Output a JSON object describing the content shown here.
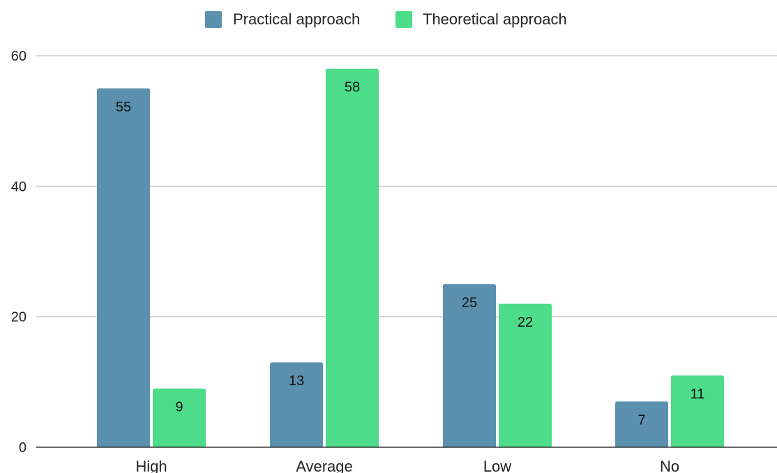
{
  "chart_data": {
    "type": "bar",
    "categories": [
      "High",
      "Average",
      "Low",
      "No"
    ],
    "series": [
      {
        "name": "Practical approach",
        "values": [
          55,
          13,
          25,
          7
        ],
        "color": "#5b91ae"
      },
      {
        "name": "Theoretical approach",
        "values": [
          9,
          58,
          22,
          11
        ],
        "color": "#4cdc8a"
      }
    ],
    "ylim": [
      0,
      60
    ],
    "yticks": [
      0,
      20,
      40,
      60
    ],
    "title": "",
    "xlabel": "",
    "ylabel": "",
    "grid": true,
    "legend_position": "top",
    "data_labels": true
  }
}
